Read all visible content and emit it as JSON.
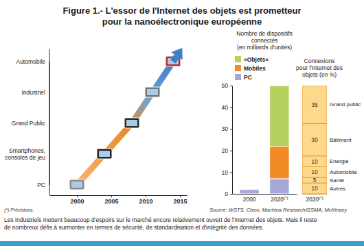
{
  "title": "Figure 1.- L'essor de l'Internet des objets est prometteur\npour la nanoélectronique européenne",
  "chart_data": [
    {
      "type": "line",
      "categories": [
        "PC",
        "Smartphones,\nconsoles de jeu",
        "Grand Public",
        "Industriel",
        "Automobile"
      ],
      "x": [
        2000,
        2004,
        2008,
        2011,
        2014
      ],
      "y": [
        "PC",
        "Smartphones,\nconsoles de jeu",
        "Grand Public",
        "Industriel",
        "Automobile"
      ],
      "xlim": [
        1996,
        2016
      ],
      "xticks": [
        2000,
        2005,
        2010,
        2015
      ],
      "line_style": "arrow",
      "marker": "icon"
    },
    {
      "type": "bar",
      "stacked": true,
      "title": "Nombre de dispositifs\nconnectés\n(en milliards d'unités)",
      "categories": [
        "2000",
        "2020(*)"
      ],
      "series": [
        {
          "name": "PC",
          "color": "#a8a7d9",
          "values": [
            2,
            7
          ]
        },
        {
          "name": "Mobiles",
          "color": "#f28b25",
          "values": [
            0,
            15
          ]
        },
        {
          "name": "«Objets»",
          "color": "#b5d05c",
          "values": [
            0,
            28
          ]
        }
      ],
      "ylim": [
        0,
        50
      ],
      "yticks": [
        0,
        10,
        20,
        30,
        40,
        50
      ],
      "legend": "top-left",
      "grid": false
    },
    {
      "type": "bar",
      "stacked": true,
      "title": "Connexions\npour l'Internet des\nobjets (en %)",
      "categories": [
        "2020(*)"
      ],
      "series": [
        {
          "name": "Autres",
          "values": [
            10
          ]
        },
        {
          "name": "Santé",
          "values": [
            5
          ]
        },
        {
          "name": "Automobile",
          "values": [
            10
          ]
        },
        {
          "name": "Energie",
          "values": [
            10
          ]
        },
        {
          "name": "Bâtiment",
          "values": [
            30
          ]
        },
        {
          "name": "Grand public",
          "values": [
            35
          ]
        }
      ],
      "color": "#fdd98b",
      "ylim": [
        0,
        100
      ],
      "data_labels": true,
      "legend": "right",
      "tick_labels": "x"
    }
  ],
  "footnote": "(*) Prévisions.",
  "source": "Source: WSTS, Cisco, Machina Research/GSMA, McKinsey",
  "caption": "Les industriels mettent beaucoup d'espoirs sur le marché encore relativement ouvert de l'Internet des objets. Mais il reste\nde nombreux défis à surmonter en termes de sécurité, de standardisation et d'intégrité des données."
}
